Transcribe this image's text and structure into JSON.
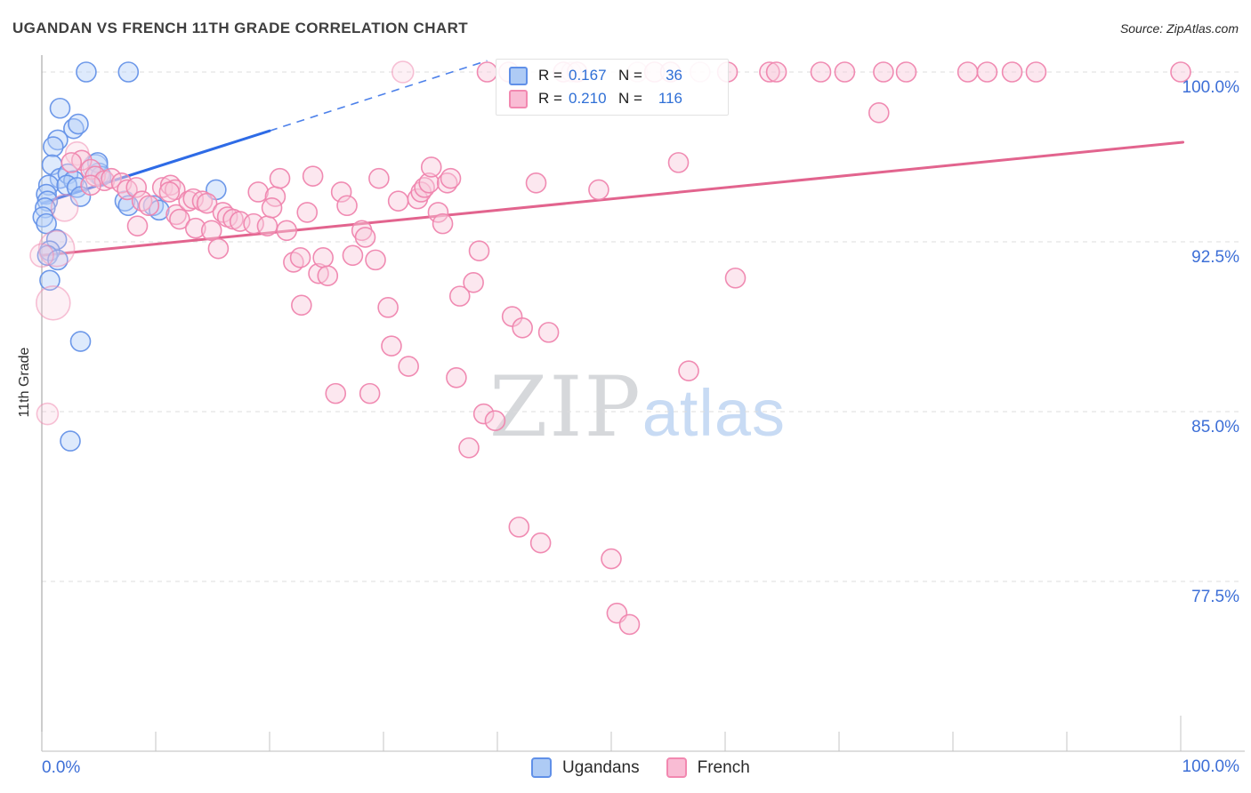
{
  "page": {
    "title": "UGANDAN VS FRENCH 11TH GRADE CORRELATION CHART",
    "source": "Source: ZipAtlas.com"
  },
  "watermark": {
    "zip": "ZIP",
    "atlas": "atlas"
  },
  "legend_box": {
    "rows": [
      {
        "series": "ugandans",
        "r_label": "R =",
        "r_value": "0.167",
        "n_label": "N =",
        "n_value": "36"
      },
      {
        "series": "french",
        "r_label": "R =",
        "r_value": "0.210",
        "n_label": "N =",
        "n_value": "116"
      }
    ]
  },
  "bottom_legend": [
    {
      "series": "ugandans",
      "label": "Ugandans"
    },
    {
      "series": "french",
      "label": "French"
    }
  ],
  "chart_data": {
    "type": "scatter",
    "title": "UGANDAN VS FRENCH 11TH GRADE CORRELATION CHART",
    "xlabel": "",
    "ylabel": "11th Grade",
    "x_axis": {
      "min": 0,
      "max": 100,
      "tick_step": 10,
      "min_label": "0.0%",
      "max_label": "100.0%"
    },
    "y_axis": {
      "grid": true,
      "ticks": [
        {
          "value": 100.0,
          "label": "100.0%"
        },
        {
          "value": 92.5,
          "label": "92.5%"
        },
        {
          "value": 85.0,
          "label": "85.0%"
        },
        {
          "value": 77.5,
          "label": "77.5%"
        }
      ]
    },
    "series": [
      {
        "name": "Ugandans",
        "r": 0.167,
        "n": 36,
        "stroke": "#6592e8",
        "fill": "#b5d1f8",
        "points": [
          [
            3.9,
            100,
            11
          ],
          [
            7.6,
            100,
            11
          ],
          [
            1.6,
            98.4,
            11
          ],
          [
            2.8,
            97.5,
            11
          ],
          [
            3.2,
            97.7,
            11
          ],
          [
            1.4,
            97,
            11
          ],
          [
            1,
            96.7,
            11
          ],
          [
            0.9,
            95.9,
            11
          ],
          [
            4.9,
            96,
            11
          ],
          [
            5.2,
            95.4,
            11
          ],
          [
            1.6,
            95.3,
            11
          ],
          [
            2.3,
            95.5,
            11
          ],
          [
            2.8,
            95.2,
            11
          ],
          [
            0.6,
            95,
            11
          ],
          [
            0.4,
            94.6,
            11
          ],
          [
            2.2,
            95,
            11
          ],
          [
            3.1,
            94.9,
            11
          ],
          [
            3.4,
            94.5,
            11
          ],
          [
            0.5,
            94.3,
            11
          ],
          [
            0.3,
            94,
            11
          ],
          [
            0.1,
            93.6,
            11
          ],
          [
            0.4,
            93.3,
            11
          ],
          [
            4.7,
            95.8,
            14,
            1
          ],
          [
            5,
            95.5,
            12,
            1
          ],
          [
            7.3,
            94.3,
            11
          ],
          [
            7.6,
            94.1,
            11
          ],
          [
            9.8,
            94.1,
            11
          ],
          [
            10.3,
            93.9,
            11
          ],
          [
            15.3,
            94.8,
            11
          ],
          [
            1.3,
            92.6,
            11
          ],
          [
            0.7,
            92.1,
            11
          ],
          [
            0.5,
            91.9,
            11
          ],
          [
            1.4,
            91.7,
            11
          ],
          [
            0.7,
            90.8,
            11
          ],
          [
            3.4,
            88.1,
            11
          ],
          [
            2.5,
            83.7,
            11
          ]
        ]
      },
      {
        "name": "French",
        "r": 0.21,
        "n": 116,
        "stroke": "#ef85ae",
        "fill": "#f8cadc",
        "points": [
          [
            31.7,
            100,
            12,
            1
          ],
          [
            39.1,
            100,
            11
          ],
          [
            41,
            100,
            11
          ],
          [
            45.8,
            100,
            11
          ],
          [
            46.5,
            100,
            11,
            1
          ],
          [
            47,
            100,
            11
          ],
          [
            52.3,
            100,
            11,
            1
          ],
          [
            53.8,
            100,
            11
          ],
          [
            55.2,
            100,
            11
          ],
          [
            57.8,
            100,
            11,
            1
          ],
          [
            60.2,
            100,
            11
          ],
          [
            63.9,
            100,
            11
          ],
          [
            64.5,
            100,
            11
          ],
          [
            68.4,
            100,
            11
          ],
          [
            70.5,
            100,
            11
          ],
          [
            73.9,
            100,
            11
          ],
          [
            75.9,
            100,
            11
          ],
          [
            81.3,
            100,
            11
          ],
          [
            83,
            100,
            11
          ],
          [
            85.2,
            100,
            11
          ],
          [
            87.3,
            100,
            11
          ],
          [
            100,
            100,
            11
          ],
          [
            73.5,
            98.2,
            11
          ],
          [
            55.9,
            96,
            11
          ],
          [
            3.1,
            96.4,
            13,
            1
          ],
          [
            3.5,
            96.1,
            11
          ],
          [
            2.6,
            96,
            11
          ],
          [
            4.3,
            95.7,
            11
          ],
          [
            4.7,
            95.4,
            11
          ],
          [
            5.5,
            95.2,
            11
          ],
          [
            6.1,
            95.3,
            11
          ],
          [
            4.3,
            95,
            11
          ],
          [
            7,
            95.1,
            11
          ],
          [
            7.5,
            94.8,
            11
          ],
          [
            8.3,
            94.9,
            11
          ],
          [
            8.8,
            94.3,
            11
          ],
          [
            9.4,
            94.1,
            11
          ],
          [
            10.6,
            94.9,
            11
          ],
          [
            11.3,
            95,
            11
          ],
          [
            11.7,
            94.8,
            11
          ],
          [
            11.8,
            93.7,
            11
          ],
          [
            8.4,
            93.2,
            11
          ],
          [
            2,
            94,
            15,
            1
          ],
          [
            1.3,
            92.2,
            20,
            1
          ],
          [
            0,
            91.9,
            13,
            1
          ],
          [
            1,
            89.8,
            19,
            1
          ],
          [
            0.5,
            84.9,
            12,
            1
          ],
          [
            11.2,
            94.7,
            11
          ],
          [
            12.9,
            94.3,
            11
          ],
          [
            13.3,
            94.4,
            11
          ],
          [
            14.1,
            94.3,
            11
          ],
          [
            14.5,
            94.2,
            11
          ],
          [
            12.1,
            93.5,
            11
          ],
          [
            13.5,
            93.1,
            11
          ],
          [
            14.9,
            93,
            11
          ],
          [
            15.5,
            92.2,
            11
          ],
          [
            15.9,
            93.8,
            11
          ],
          [
            16.3,
            93.6,
            11
          ],
          [
            16.8,
            93.5,
            11
          ],
          [
            17.4,
            93.4,
            11
          ],
          [
            18.6,
            93.3,
            11
          ],
          [
            19,
            94.7,
            11
          ],
          [
            19.8,
            93.2,
            11
          ],
          [
            20.5,
            94.5,
            11
          ],
          [
            20.2,
            94,
            11
          ],
          [
            20.9,
            95.3,
            11
          ],
          [
            21.5,
            93,
            11
          ],
          [
            22.1,
            91.6,
            11
          ],
          [
            22.7,
            91.8,
            11
          ],
          [
            22.8,
            89.7,
            11
          ],
          [
            23.3,
            93.8,
            11
          ],
          [
            23.8,
            95.4,
            11
          ],
          [
            24.3,
            91.1,
            11
          ],
          [
            24.7,
            91.8,
            11
          ],
          [
            25.1,
            91,
            11
          ],
          [
            25.8,
            85.8,
            11
          ],
          [
            26.3,
            94.7,
            11
          ],
          [
            26.8,
            94.1,
            11
          ],
          [
            27.3,
            91.9,
            11
          ],
          [
            28.1,
            93,
            11
          ],
          [
            28.4,
            92.7,
            11
          ],
          [
            28.8,
            85.8,
            11
          ],
          [
            29.3,
            91.7,
            11
          ],
          [
            29.6,
            95.3,
            11
          ],
          [
            30.4,
            89.6,
            11
          ],
          [
            30.7,
            87.9,
            11
          ],
          [
            31.3,
            94.3,
            11
          ],
          [
            32.2,
            87,
            11
          ],
          [
            33,
            94.4,
            11
          ],
          [
            33.3,
            94.7,
            11
          ],
          [
            33.6,
            94.9,
            11
          ],
          [
            34,
            95.1,
            11
          ],
          [
            34.2,
            95.8,
            11
          ],
          [
            34.8,
            93.8,
            11
          ],
          [
            35.2,
            93.3,
            11
          ],
          [
            35.6,
            95.1,
            11
          ],
          [
            35.9,
            95.3,
            11
          ],
          [
            36.4,
            86.5,
            11
          ],
          [
            36.7,
            90.1,
            11
          ],
          [
            37.5,
            83.4,
            11
          ],
          [
            37.9,
            90.7,
            11
          ],
          [
            38.4,
            92.1,
            11
          ],
          [
            38.8,
            84.9,
            11
          ],
          [
            39.8,
            84.6,
            11
          ],
          [
            41.3,
            89.2,
            11
          ],
          [
            41.9,
            79.9,
            11
          ],
          [
            42.2,
            88.7,
            11
          ],
          [
            43.4,
            95.1,
            11
          ],
          [
            43.8,
            79.2,
            11
          ],
          [
            44.5,
            88.5,
            11
          ],
          [
            48.9,
            94.8,
            11
          ],
          [
            50,
            78.5,
            11
          ],
          [
            50.5,
            76.1,
            11
          ],
          [
            51.6,
            75.6,
            11
          ],
          [
            56.8,
            86.8,
            11
          ],
          [
            60.9,
            90.9,
            11
          ]
        ]
      }
    ],
    "trend_lines": [
      {
        "series": "Ugandans",
        "color": "#2e6be6",
        "solid": [
          [
            0,
            94.2
          ],
          [
            20,
            97.4
          ]
        ],
        "dashed": [
          [
            20,
            97.4
          ],
          [
            39.1,
            100.5
          ]
        ]
      },
      {
        "series": "French",
        "color": "#e2648e",
        "solid": [
          [
            0,
            91.9
          ],
          [
            100.2,
            96.9
          ]
        ]
      }
    ],
    "layout_hints": {
      "legend_position": "bottom-center",
      "y_labels_side": "right",
      "grid_style": "dashed"
    }
  }
}
